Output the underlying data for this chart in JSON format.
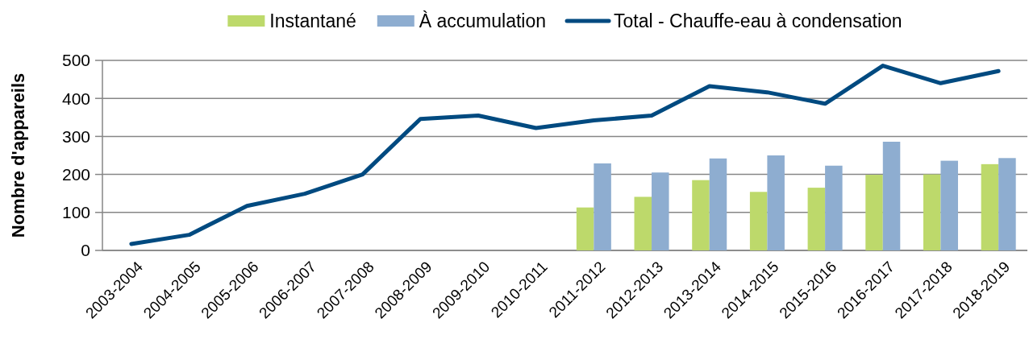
{
  "chart_data": {
    "type": "bar",
    "ylabel": "Nombre d'appareils",
    "categories": [
      "2003-2004",
      "2004-2005",
      "2005-2006",
      "2006-2007",
      "2007-2008",
      "2008-2009",
      "2009-2010",
      "2010-2011",
      "2011-2012",
      "2012-2013",
      "2013-2014",
      "2014-2015",
      "2015-2016",
      "2016-2017",
      "2017-2018",
      "2018-2019"
    ],
    "series": [
      {
        "name": "Instantané",
        "color": "#bdd96b",
        "values": [
          null,
          null,
          null,
          null,
          null,
          null,
          null,
          null,
          113,
          141,
          185,
          154,
          165,
          199,
          200,
          227
        ]
      },
      {
        "name": "À accumulation",
        "color": "#8eadd0",
        "values": [
          null,
          null,
          null,
          null,
          null,
          null,
          null,
          null,
          229,
          205,
          242,
          250,
          223,
          286,
          236,
          243
        ]
      },
      {
        "name": "Total - Chauffe-eau à condensation",
        "type": "line",
        "color": "#004a80",
        "values": [
          17,
          41,
          117,
          149,
          200,
          346,
          355,
          322,
          342,
          355,
          432,
          416,
          386,
          486,
          440,
          472
        ]
      }
    ],
    "ylim": [
      0,
      500
    ],
    "yticks": [
      0,
      100,
      200,
      300,
      400,
      500
    ],
    "grid": "y",
    "legend": "top"
  }
}
